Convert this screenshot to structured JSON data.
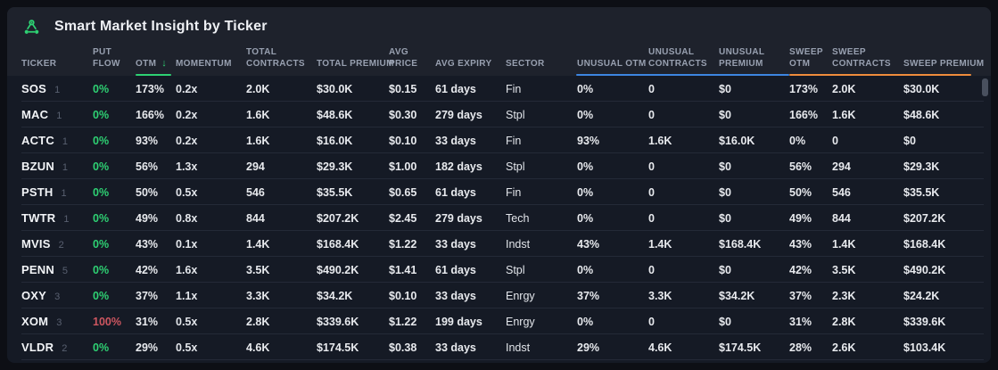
{
  "panel": {
    "title": "Smart Market Insight by Ticker",
    "icon": "molecule-icon"
  },
  "colors": {
    "accent_green": "#2ed173",
    "negative_red": "#cd5660",
    "unusual_group_blue": "#3d85e0",
    "sweep_group_orange": "#ef8c3c"
  },
  "sort": {
    "column": "otm",
    "direction": "desc",
    "icon": "arrow-down-icon",
    "glyph": "↓"
  },
  "table": {
    "columns": [
      {
        "field": "ticker",
        "label": "TICKER"
      },
      {
        "field": "put_flow",
        "label": "PUT\nFLOW"
      },
      {
        "field": "otm",
        "label": "OTM"
      },
      {
        "field": "momentum",
        "label": "MOMENTUM"
      },
      {
        "field": "total_contracts",
        "label": "TOTAL\nCONTRACTS"
      },
      {
        "field": "total_premium",
        "label": "TOTAL PREMIUM"
      },
      {
        "field": "avg_price",
        "label": "AVG\nPRICE"
      },
      {
        "field": "avg_expiry",
        "label": "AVG EXPIRY"
      },
      {
        "field": "sector",
        "label": "SECTOR"
      },
      {
        "field": "unusual_otm",
        "label": "UNUSUAL OTM"
      },
      {
        "field": "unusual_contracts",
        "label": "UNUSUAL\nCONTRACTS"
      },
      {
        "field": "unusual_premium",
        "label": "UNUSUAL\nPREMIUM"
      },
      {
        "field": "sweep_otm",
        "label": "SWEEP\nOTM"
      },
      {
        "field": "sweep_contracts",
        "label": "SWEEP\nCONTRACTS"
      },
      {
        "field": "sweep_premium",
        "label": "SWEEP PREMIUM"
      }
    ],
    "rows": [
      {
        "ticker": "SOS",
        "count": "1",
        "put_flow": "0%",
        "put_flow_color": "green",
        "otm": "173%",
        "momentum": "0.2x",
        "total_contracts": "2.0K",
        "total_premium": "$30.0K",
        "avg_price": "$0.15",
        "avg_expiry": "61 days",
        "sector": "Fin",
        "unusual_otm": "0%",
        "unusual_contracts": "0",
        "unusual_premium": "$0",
        "sweep_otm": "173%",
        "sweep_contracts": "2.0K",
        "sweep_premium": "$30.0K"
      },
      {
        "ticker": "MAC",
        "count": "1",
        "put_flow": "0%",
        "put_flow_color": "green",
        "otm": "166%",
        "momentum": "0.2x",
        "total_contracts": "1.6K",
        "total_premium": "$48.6K",
        "avg_price": "$0.30",
        "avg_expiry": "279 days",
        "sector": "Stpl",
        "unusual_otm": "0%",
        "unusual_contracts": "0",
        "unusual_premium": "$0",
        "sweep_otm": "166%",
        "sweep_contracts": "1.6K",
        "sweep_premium": "$48.6K"
      },
      {
        "ticker": "ACTC",
        "count": "1",
        "put_flow": "0%",
        "put_flow_color": "green",
        "otm": "93%",
        "momentum": "0.2x",
        "total_contracts": "1.6K",
        "total_premium": "$16.0K",
        "avg_price": "$0.10",
        "avg_expiry": "33 days",
        "sector": "Fin",
        "unusual_otm": "93%",
        "unusual_contracts": "1.6K",
        "unusual_premium": "$16.0K",
        "sweep_otm": "0%",
        "sweep_contracts": "0",
        "sweep_premium": "$0"
      },
      {
        "ticker": "BZUN",
        "count": "1",
        "put_flow": "0%",
        "put_flow_color": "green",
        "otm": "56%",
        "momentum": "1.3x",
        "total_contracts": "294",
        "total_premium": "$29.3K",
        "avg_price": "$1.00",
        "avg_expiry": "182 days",
        "sector": "Stpl",
        "unusual_otm": "0%",
        "unusual_contracts": "0",
        "unusual_premium": "$0",
        "sweep_otm": "56%",
        "sweep_contracts": "294",
        "sweep_premium": "$29.3K"
      },
      {
        "ticker": "PSTH",
        "count": "1",
        "put_flow": "0%",
        "put_flow_color": "green",
        "otm": "50%",
        "momentum": "0.5x",
        "total_contracts": "546",
        "total_premium": "$35.5K",
        "avg_price": "$0.65",
        "avg_expiry": "61 days",
        "sector": "Fin",
        "unusual_otm": "0%",
        "unusual_contracts": "0",
        "unusual_premium": "$0",
        "sweep_otm": "50%",
        "sweep_contracts": "546",
        "sweep_premium": "$35.5K"
      },
      {
        "ticker": "TWTR",
        "count": "1",
        "put_flow": "0%",
        "put_flow_color": "green",
        "otm": "49%",
        "momentum": "0.8x",
        "total_contracts": "844",
        "total_premium": "$207.2K",
        "avg_price": "$2.45",
        "avg_expiry": "279 days",
        "sector": "Tech",
        "unusual_otm": "0%",
        "unusual_contracts": "0",
        "unusual_premium": "$0",
        "sweep_otm": "49%",
        "sweep_contracts": "844",
        "sweep_premium": "$207.2K"
      },
      {
        "ticker": "MVIS",
        "count": "2",
        "put_flow": "0%",
        "put_flow_color": "green",
        "otm": "43%",
        "momentum": "0.1x",
        "total_contracts": "1.4K",
        "total_premium": "$168.4K",
        "avg_price": "$1.22",
        "avg_expiry": "33 days",
        "sector": "Indst",
        "unusual_otm": "43%",
        "unusual_contracts": "1.4K",
        "unusual_premium": "$168.4K",
        "sweep_otm": "43%",
        "sweep_contracts": "1.4K",
        "sweep_premium": "$168.4K"
      },
      {
        "ticker": "PENN",
        "count": "5",
        "put_flow": "0%",
        "put_flow_color": "green",
        "otm": "42%",
        "momentum": "1.6x",
        "total_contracts": "3.5K",
        "total_premium": "$490.2K",
        "avg_price": "$1.41",
        "avg_expiry": "61 days",
        "sector": "Stpl",
        "unusual_otm": "0%",
        "unusual_contracts": "0",
        "unusual_premium": "$0",
        "sweep_otm": "42%",
        "sweep_contracts": "3.5K",
        "sweep_premium": "$490.2K"
      },
      {
        "ticker": "OXY",
        "count": "3",
        "put_flow": "0%",
        "put_flow_color": "green",
        "otm": "37%",
        "momentum": "1.1x",
        "total_contracts": "3.3K",
        "total_premium": "$34.2K",
        "avg_price": "$0.10",
        "avg_expiry": "33 days",
        "sector": "Enrgy",
        "unusual_otm": "37%",
        "unusual_contracts": "3.3K",
        "unusual_premium": "$34.2K",
        "sweep_otm": "37%",
        "sweep_contracts": "2.3K",
        "sweep_premium": "$24.2K"
      },
      {
        "ticker": "XOM",
        "count": "3",
        "put_flow": "100%",
        "put_flow_color": "red",
        "otm": "31%",
        "momentum": "0.5x",
        "total_contracts": "2.8K",
        "total_premium": "$339.6K",
        "avg_price": "$1.22",
        "avg_expiry": "199 days",
        "sector": "Enrgy",
        "unusual_otm": "0%",
        "unusual_contracts": "0",
        "unusual_premium": "$0",
        "sweep_otm": "31%",
        "sweep_contracts": "2.8K",
        "sweep_premium": "$339.6K"
      },
      {
        "ticker": "VLDR",
        "count": "2",
        "put_flow": "0%",
        "put_flow_color": "green",
        "otm": "29%",
        "momentum": "0.5x",
        "total_contracts": "4.6K",
        "total_premium": "$174.5K",
        "avg_price": "$0.38",
        "avg_expiry": "33 days",
        "sector": "Indst",
        "unusual_otm": "29%",
        "unusual_contracts": "4.6K",
        "unusual_premium": "$174.5K",
        "sweep_otm": "28%",
        "sweep_contracts": "2.6K",
        "sweep_premium": "$103.4K"
      }
    ]
  }
}
